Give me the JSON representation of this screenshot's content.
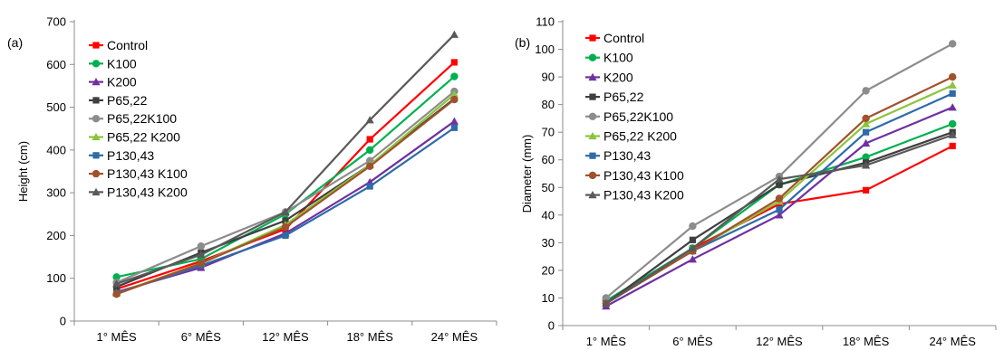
{
  "chart_data": [
    {
      "type": "line",
      "panel_label": "(a)",
      "ylabel": "Height (cm)",
      "xlabel": "",
      "ylim": [
        0,
        700
      ],
      "ytick_step": 100,
      "grid": false,
      "legend_position": "top-left",
      "categories": [
        "1° MÊS",
        "6° MÊS",
        "12° MÊS",
        "18° MÊS",
        "24° MÊS"
      ],
      "series": [
        {
          "name": "Control",
          "color": "#ff0000",
          "marker": "square",
          "values": [
            75,
            140,
            215,
            425,
            605
          ]
        },
        {
          "name": "K100",
          "color": "#00b050",
          "marker": "circle",
          "values": [
            103,
            145,
            250,
            400,
            572
          ]
        },
        {
          "name": "K200",
          "color": "#7030a0",
          "marker": "triangle",
          "values": [
            68,
            125,
            205,
            325,
            467
          ]
        },
        {
          "name": "P65,22",
          "color": "#3f3f3f",
          "marker": "square",
          "values": [
            80,
            160,
            235,
            365,
            520
          ]
        },
        {
          "name": "P65,22K100",
          "color": "#8c8c8c",
          "marker": "circle",
          "values": [
            90,
            175,
            255,
            375,
            537
          ]
        },
        {
          "name": "P65,22 K200",
          "color": "#8cc43c",
          "marker": "triangle",
          "values": [
            65,
            135,
            225,
            365,
            530
          ]
        },
        {
          "name": "P130,43",
          "color": "#2e6ba8",
          "marker": "square",
          "values": [
            65,
            130,
            200,
            315,
            452
          ]
        },
        {
          "name": "P130,43 K100",
          "color": "#a0522d",
          "marker": "circle",
          "values": [
            63,
            135,
            220,
            362,
            518
          ]
        },
        {
          "name": "P130,43 K200",
          "color": "#595959",
          "marker": "triangle",
          "values": [
            87,
            155,
            255,
            470,
            670
          ]
        }
      ]
    },
    {
      "type": "line",
      "panel_label": "(b)",
      "ylabel": "Diameter (mm)",
      "xlabel": "",
      "ylim": [
        0,
        110
      ],
      "ytick_step": 10,
      "grid": false,
      "legend_position": "top-left",
      "categories": [
        "1° MÊS",
        "6° MÊS",
        "12° MÊS",
        "18° MÊS",
        "24° MÊS"
      ],
      "series": [
        {
          "name": "Control",
          "color": "#ff0000",
          "marker": "square",
          "values": [
            8,
            28,
            44,
            49,
            65
          ]
        },
        {
          "name": "K100",
          "color": "#00b050",
          "marker": "circle",
          "values": [
            9,
            28,
            51,
            61,
            73
          ]
        },
        {
          "name": "K200",
          "color": "#7030a0",
          "marker": "triangle",
          "values": [
            7,
            24,
            40,
            66,
            79
          ]
        },
        {
          "name": "P65,22",
          "color": "#3f3f3f",
          "marker": "square",
          "values": [
            8,
            31,
            51,
            59,
            70
          ]
        },
        {
          "name": "P65,22K100",
          "color": "#8c8c8c",
          "marker": "circle",
          "values": [
            10,
            36,
            54,
            85,
            102
          ]
        },
        {
          "name": "P65,22 K200",
          "color": "#8cc43c",
          "marker": "triangle",
          "values": [
            8,
            27,
            45,
            73,
            87
          ]
        },
        {
          "name": "P130,43",
          "color": "#2e6ba8",
          "marker": "square",
          "values": [
            8,
            27,
            42,
            70,
            84
          ]
        },
        {
          "name": "P130,43 K100",
          "color": "#a0522d",
          "marker": "circle",
          "values": [
            8,
            27,
            46,
            75,
            90
          ]
        },
        {
          "name": "P130,43 K200",
          "color": "#595959",
          "marker": "triangle",
          "values": [
            8,
            28,
            53,
            58,
            69
          ]
        }
      ]
    }
  ]
}
